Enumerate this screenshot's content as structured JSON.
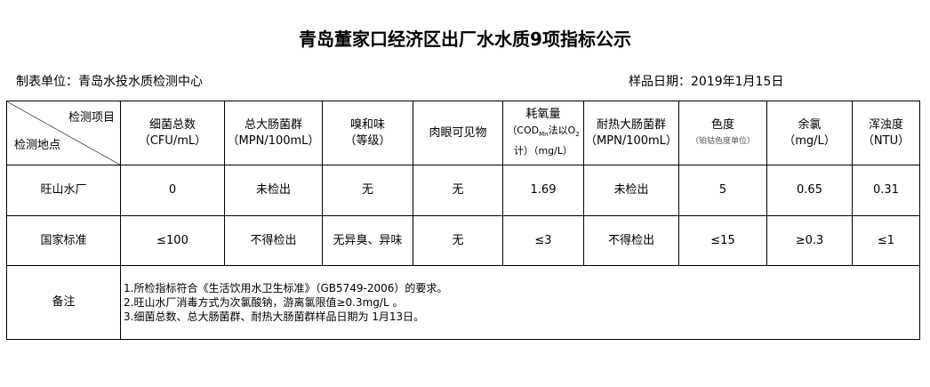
{
  "title": "青岛董家口经济区出厂水水质9项指标公示",
  "unit": "制表单位：青岛水投水质检测中心",
  "date": "样品日期：2019年1月15日",
  "header": {
    "corner_top": "检测项目",
    "corner_bottom": "检测地点",
    "cols": [
      {
        "name": "细菌总数",
        "unit": "（CFU/mL）"
      },
      {
        "name": "总大肠菌群",
        "unit": "（MPN/100mL）"
      },
      {
        "name": "嗅和味",
        "unit": "（等级）"
      },
      {
        "name": "肉眼可见物",
        "unit": ""
      },
      {
        "name": "耗氧量",
        "unit": "（COD",
        "unit_sub": "Mn",
        "unit2": "法以O",
        "unit_sub2": "2",
        "unit3": "计）（mg/L）"
      },
      {
        "name": "耐热大肠菌群",
        "unit": "（MPN/100mL）"
      },
      {
        "name": "色度",
        "unit": "（铂钴色度单位）"
      },
      {
        "name": "余氯",
        "unit": "（mg/L）"
      },
      {
        "name": "浑浊度",
        "unit": "（NTU）"
      }
    ]
  },
  "rows": [
    {
      "label": "旺山水厂",
      "values": [
        "0",
        "未检出",
        "无",
        "无",
        "1.69",
        "未检出",
        "5",
        "0.65",
        "0.31"
      ]
    },
    {
      "label": "国家标准",
      "values": [
        "≤100",
        "不得检出",
        "无异臭、异味",
        "无",
        "≤3",
        "不得检出",
        "≤15",
        "≥0.3",
        "≤1"
      ]
    }
  ],
  "remarks": {
    "label": "备注",
    "lines": [
      "1.所检指标符合《生活饮用水卫生标准》（GB5749-2006）的要求。",
      "2.旺山水厂消毒方式为次氯酸钠，游离氯限值≥0.3mg/L 。",
      "3.细菌总数、总大肠菌群、耐热大肠菌群样品日期为 1月13日。"
    ]
  }
}
